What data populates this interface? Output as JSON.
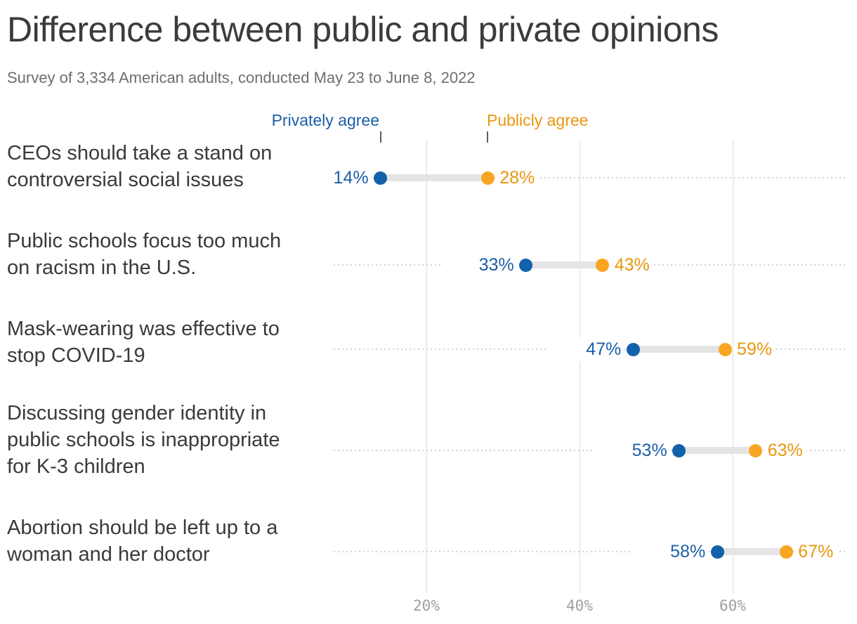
{
  "header": {
    "title": "Difference between public and private opinions",
    "subtitle": "Survey of 3,334 American adults, conducted May 23 to June 8, 2022"
  },
  "legend": {
    "private_label": "Privately agree",
    "public_label": "Publicly agree"
  },
  "colors": {
    "private_dot": "#1261ab",
    "private_text": "#1c5fa8",
    "public_dot": "#f9a521",
    "public_text": "#e8970e",
    "title_text": "#3b3b3b",
    "subtitle_text": "#6e6e6e",
    "category_text": "#3a3a3a",
    "grid": "#dcdcdc",
    "leader_dots": "#d2d2d2",
    "connector": "#e4e4e4",
    "axis_text": "#9e9e9e",
    "legend_tick": "#5f5f5f"
  },
  "chart_data": {
    "type": "scatter",
    "subtype": "dumbbell-dot-plot",
    "title": "Difference between public and private opinions",
    "subtitle": "Survey of 3,334 American adults, conducted May 23 to June 8, 2022",
    "categories": [
      "CEOs should take a stand on controversial social issues",
      "Public schools focus too much on racism in the U.S.",
      "Mask-wearing was effective to stop COVID-19",
      "Discussing gender identity in public schools is inappropriate for K-3 children",
      "Abortion should be left up to a woman and her doctor"
    ],
    "category_lines": [
      [
        "CEOs should take a stand on",
        "controversial social issues"
      ],
      [
        "Public schools focus too much",
        "on racism in the U.S."
      ],
      [
        "Mask-wearing was effective to",
        "stop COVID-19"
      ],
      [
        "Discussing gender identity in",
        "public schools is inappropriate",
        "for K-3 children"
      ],
      [
        "Abortion should be left up to a",
        "woman and her doctor"
      ]
    ],
    "series": [
      {
        "name": "Privately agree",
        "values": [
          14,
          33,
          47,
          53,
          58
        ],
        "color": "#1261ab"
      },
      {
        "name": "Publicly agree",
        "values": [
          28,
          43,
          59,
          63,
          67
        ],
        "color": "#f9a521"
      }
    ],
    "value_suffix": "%",
    "x_axis": {
      "ticks": [
        20,
        40,
        60
      ],
      "tick_labels": [
        "20%",
        "40%",
        "60%"
      ],
      "range": [
        8,
        75
      ],
      "grid": true
    },
    "legend_position": "top",
    "orientation": "horizontal"
  }
}
